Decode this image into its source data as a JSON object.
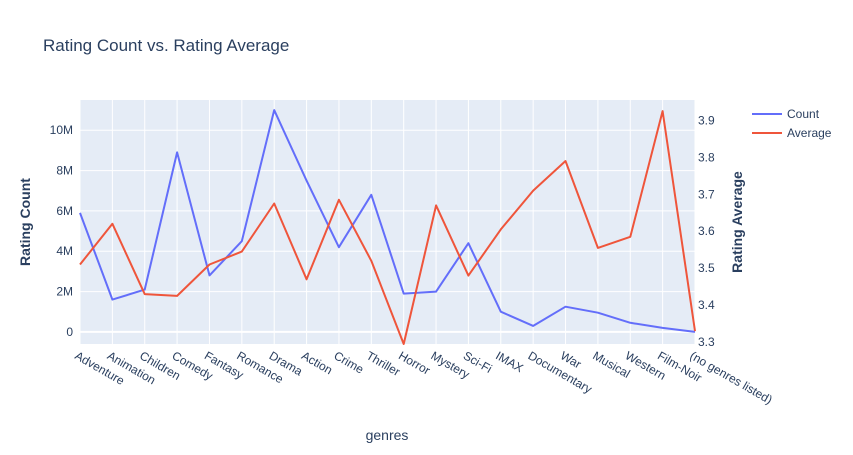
{
  "chart_data": {
    "type": "line",
    "title": "Rating Count vs. Rating Average",
    "xlabel": "genres",
    "ylabel": "Rating Count",
    "y2label": "Rating Average",
    "categories": [
      "Adventure",
      "Animation",
      "Children",
      "Comedy",
      "Fantasy",
      "Romance",
      "Drama",
      "Action",
      "Crime",
      "Thriller",
      "Horror",
      "Mystery",
      "Sci-Fi",
      "IMAX",
      "Documentary",
      "War",
      "Musical",
      "Western",
      "Film-Noir",
      "(no genres listed)"
    ],
    "series": [
      {
        "name": "Count",
        "axis": "left",
        "color": "#636efa",
        "values": [
          5900000,
          1600000,
          2100000,
          8900000,
          2800000,
          4500000,
          11000000,
          7500000,
          4200000,
          6800000,
          1900000,
          2000000,
          4400000,
          1000000,
          300000,
          1250000,
          950000,
          450000,
          200000,
          0
        ]
      },
      {
        "name": "Average",
        "axis": "right",
        "color": "#ef553b",
        "values": [
          3.51,
          3.62,
          3.43,
          3.425,
          3.51,
          3.545,
          3.675,
          3.47,
          3.685,
          3.52,
          3.295,
          3.67,
          3.48,
          3.605,
          3.71,
          3.79,
          3.555,
          3.585,
          3.925,
          3.33
        ]
      }
    ],
    "y_ticks": [
      0,
      2000000,
      4000000,
      6000000,
      8000000,
      10000000
    ],
    "y_tick_labels": [
      "0",
      "2M",
      "4M",
      "6M",
      "8M",
      "10M"
    ],
    "ylim": [
      -600000,
      11500000
    ],
    "y2_ticks": [
      3.3,
      3.4,
      3.5,
      3.6,
      3.7,
      3.8,
      3.9
    ],
    "y2_tick_labels": [
      "3.3",
      "3.4",
      "3.5",
      "3.6",
      "3.7",
      "3.8",
      "3.9"
    ],
    "y2lim": [
      3.295,
      3.955
    ],
    "legend_position": "top-right",
    "grid": true,
    "colors": {
      "plot_bg": "#e5ecf6",
      "grid": "#ffffff",
      "text": "#2a3f5f"
    }
  }
}
